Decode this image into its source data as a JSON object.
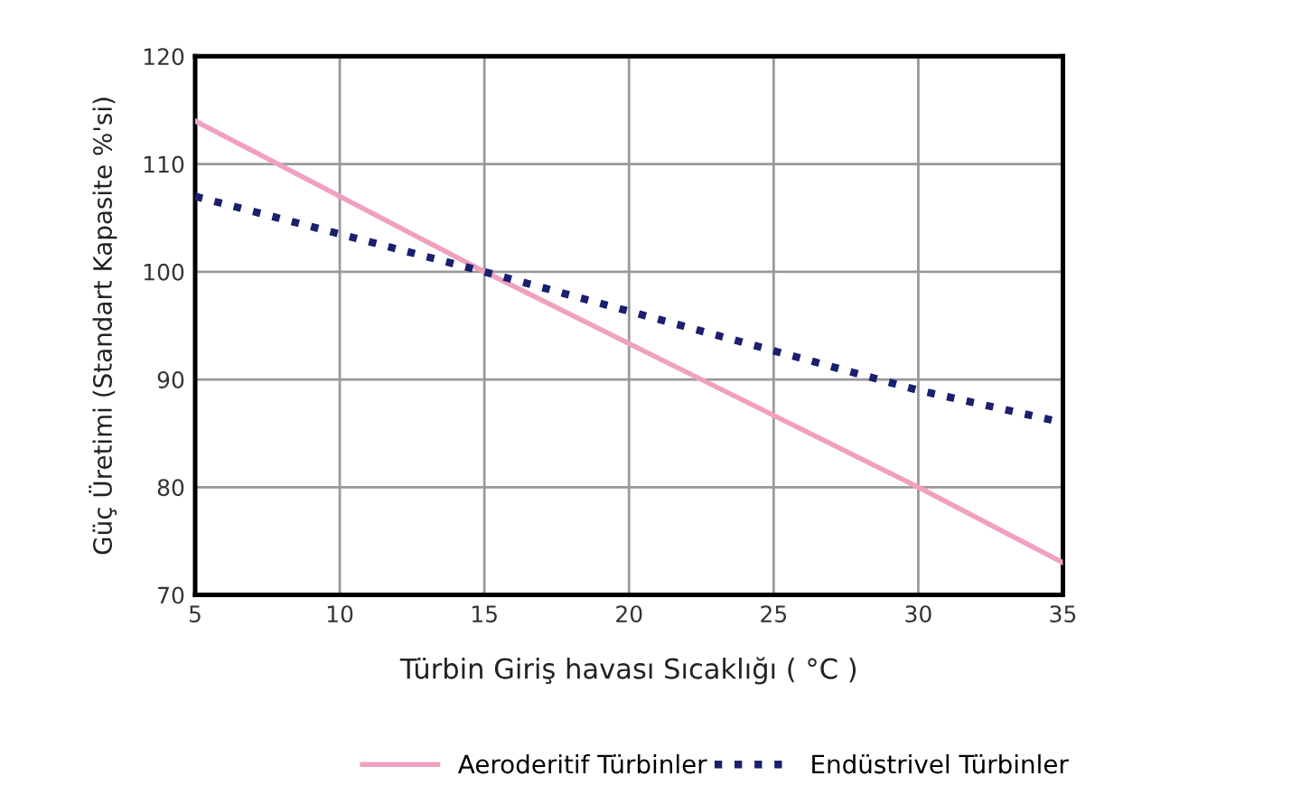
{
  "chart_data": {
    "type": "line",
    "xlabel": "Türbin Giriş havası Sıcaklığı ( °C )",
    "ylabel": "Güç Üretimi (Standart Kapasite %'si)",
    "xlim": [
      5,
      35
    ],
    "xticks": [
      5,
      10,
      15,
      20,
      25,
      30,
      35
    ],
    "ylim": [
      70,
      120
    ],
    "yticks": [
      70,
      80,
      90,
      100,
      110,
      120
    ],
    "grid": true,
    "legend": "bottom",
    "series": [
      {
        "name": "Aeroderitif Türbinler",
        "color": "#f0a0c0",
        "x": [
          5,
          15,
          30,
          35
        ],
        "values": [
          114,
          100,
          80,
          73
        ],
        "line_style": "solid"
      },
      {
        "name": "Endüstrivel Türbinler",
        "color": "#1a1f6e",
        "x": [
          5,
          15,
          30,
          35
        ],
        "values": [
          107,
          100,
          89,
          86
        ],
        "line_style": "dotted"
      }
    ]
  }
}
